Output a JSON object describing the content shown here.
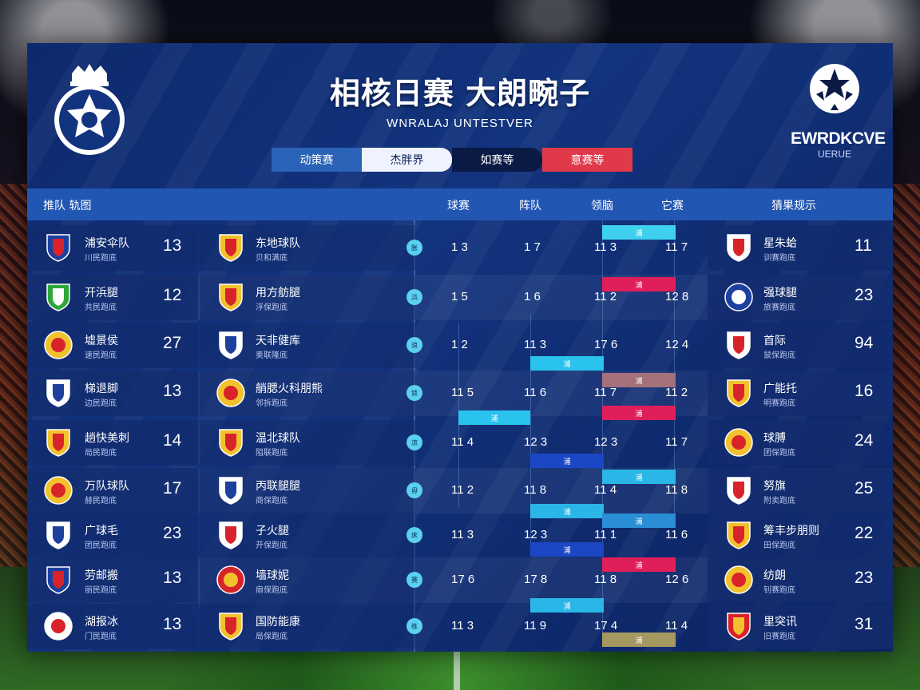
{
  "header": {
    "title": "相核日赛 大朗畹子",
    "subtitle": "WNRALAJ UNTESTVER",
    "right_title": "EWRDKCVE",
    "right_subtitle": "UERUE"
  },
  "tabs": [
    "动策赛",
    "杰胖界",
    "如赛等",
    "意赛等"
  ],
  "columns": {
    "team": "推队 轨图",
    "c1": "球赛",
    "c2": "阵队",
    "c3": "领脑",
    "c4": "它赛",
    "right": "猜果规示"
  },
  "rows": [
    {
      "l_name": "浦安伞队",
      "l_sub": "川民跑底",
      "l_num": "13",
      "m_name": "东地球队",
      "m_sub": "贝和满底",
      "dot": "胀",
      "s1": "1 3",
      "s2": "1 7",
      "s3": "11 3",
      "s4": "11 7",
      "r_name": "星朱蛤",
      "r_sub": "训赛跑底",
      "r_num": "11"
    },
    {
      "l_name": "开浜腿",
      "l_sub": "共民跑底",
      "l_num": "12",
      "m_name": "用方舫腿",
      "m_sub": "浮保跑底",
      "dot": "浜",
      "s1": "1 5",
      "s2": "1 6",
      "s3": "11 2",
      "s4": "12 8",
      "r_name": "强球腿",
      "r_sub": "旅赛跑底",
      "r_num": "23"
    },
    {
      "l_name": "墟景侯",
      "l_sub": "速民跑底",
      "l_num": "27",
      "m_name": "天非健库",
      "m_sub": "奥联隆底",
      "dot": "浪",
      "s1": "1 2",
      "s2": "11 3",
      "s3": "17 6",
      "s4": "12 4",
      "r_name": "首际",
      "r_sub": "鼠保跑底",
      "r_num": "94"
    },
    {
      "l_name": "梯退脚",
      "l_sub": "边民跑底",
      "l_num": "13",
      "m_name": "艄腮火科朋熊",
      "m_sub": "邻拆跑底",
      "dot": "锁",
      "s1": "11 5",
      "s2": "11 6",
      "s3": "11 7",
      "s4": "11 2",
      "r_name": "广能托",
      "r_sub": "明赛跑底",
      "r_num": "16"
    },
    {
      "l_name": "趟快美刺",
      "l_sub": "局民跑底",
      "l_num": "14",
      "m_name": "温北球队",
      "m_sub": "阻联跑底",
      "dot": "凉",
      "s1": "11 4",
      "s2": "12 3",
      "s3": "12 3",
      "s4": "11 7",
      "r_name": "球膊",
      "r_sub": "团保跑底",
      "r_num": "24"
    },
    {
      "l_name": "万队球队",
      "l_sub": "赫民跑底",
      "l_num": "17",
      "m_name": "丙联腿腿",
      "m_sub": "商保跑底",
      "dot": "毋",
      "s1": "11 2",
      "s2": "11 8",
      "s3": "11 4",
      "s4": "11 8",
      "r_name": "努旗",
      "r_sub": "附卖跑底",
      "r_num": "25"
    },
    {
      "l_name": "广球毛",
      "l_sub": "团民跑底",
      "l_num": "23",
      "m_name": "子火腿",
      "m_sub": "开保跑底",
      "dot": "床",
      "s1": "11 3",
      "s2": "12 3",
      "s3": "11 1",
      "s4": "11 6",
      "r_name": "筹丰步朋则",
      "r_sub": "田保跑底",
      "r_num": "22"
    },
    {
      "l_name": "劳邮搬",
      "l_sub": "丽民跑底",
      "l_num": "13",
      "m_name": "墙球妮",
      "m_sub": "扇保跑底",
      "dot": "赛",
      "s1": "17 6",
      "s2": "17 8",
      "s3": "11 8",
      "s4": "12 6",
      "r_name": "纺朗",
      "r_sub": "钊赛跑底",
      "r_num": "23"
    },
    {
      "l_name": "湖报冰",
      "l_sub": "门民跑底",
      "l_num": "13",
      "m_name": "国防能康",
      "m_sub": "局保跑底",
      "dot": "练",
      "s1": "11 3",
      "s2": "11 9",
      "s3": "17 4",
      "s4": "11 4",
      "r_name": "里突讯",
      "r_sub": "旧赛跑底",
      "r_num": "31"
    }
  ],
  "bars": [
    {
      "label": "浦",
      "color": "#3fd0f0"
    },
    {
      "label": "浦",
      "color": "#e01e5a"
    },
    {
      "label": "浦",
      "color": "#29c3ee"
    },
    {
      "label": "浦",
      "color": "#a4707a"
    },
    {
      "label": "浦",
      "color": "#29c3ee"
    },
    {
      "label": "浦",
      "color": "#e01e5a"
    },
    {
      "label": "浦",
      "color": "#1c47c4"
    },
    {
      "label": "浦",
      "color": "#2ab6e6"
    },
    {
      "label": "浦",
      "color": "#2ab6e6"
    },
    {
      "label": "浦",
      "color": "#2a8ed6"
    },
    {
      "label": "浦",
      "color": "#1c47c4"
    },
    {
      "label": "浦",
      "color": "#e01e5a"
    },
    {
      "label": "浦",
      "color": "#2ab6e6"
    },
    {
      "label": "浦",
      "color": "#a59860"
    }
  ]
}
